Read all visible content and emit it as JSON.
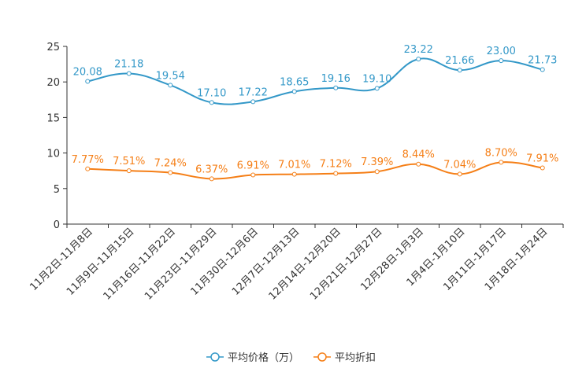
{
  "chart_data": {
    "type": "line",
    "categories": [
      "11月2日-11月8日",
      "11月9日-11月15日",
      "11月16日-11月22日",
      "11月23日-11月29日",
      "11月30日-12月6日",
      "12月7日-12月13日",
      "12月14日-12月20日",
      "12月21日-12月27日",
      "12月28日-1月3日",
      "1月4日-1月10日",
      "1月11日-1月17日",
      "1月18日-1月24日"
    ],
    "series": [
      {
        "name": "平均价格（万）",
        "color": "#3398c8",
        "values": [
          20.08,
          21.18,
          19.54,
          17.1,
          17.22,
          18.65,
          19.16,
          19.1,
          23.22,
          21.66,
          23.0,
          21.73
        ],
        "labels": [
          "20.08",
          "21.18",
          "19.54",
          "17.10",
          "17.22",
          "18.65",
          "19.16",
          "19.10",
          "23.22",
          "21.66",
          "23.00",
          "21.73"
        ]
      },
      {
        "name": "平均折扣",
        "color": "#f57f17",
        "values": [
          7.77,
          7.51,
          7.24,
          6.37,
          6.91,
          7.01,
          7.12,
          7.39,
          8.44,
          7.04,
          8.7,
          7.91
        ],
        "labels": [
          "7.77%",
          "7.51%",
          "7.24%",
          "6.37%",
          "6.91%",
          "7.01%",
          "7.12%",
          "7.39%",
          "8.44%",
          "7.04%",
          "8.70%",
          "7.91%"
        ]
      }
    ],
    "y_ticks": [
      "0",
      "5",
      "10",
      "15",
      "20",
      "25"
    ],
    "ylim": [
      0,
      25
    ],
    "title": "",
    "xlabel": "",
    "ylabel": "",
    "legend_position": "bottom-center",
    "grid": false
  }
}
